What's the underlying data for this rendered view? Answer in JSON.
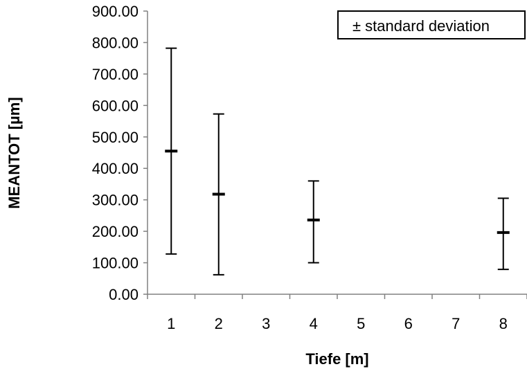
{
  "chart_data": {
    "type": "scatter",
    "title": "",
    "xlabel": "Tiefe [m]",
    "ylabel": "MEANTOT [µm]",
    "categories": [
      "1",
      "2",
      "3",
      "4",
      "5",
      "6",
      "7",
      "8"
    ],
    "ylim": [
      0,
      900
    ],
    "yticks": [
      "0.00",
      "100.00",
      "200.00",
      "300.00",
      "400.00",
      "500.00",
      "600.00",
      "700.00",
      "800.00",
      "900.00"
    ],
    "grid": false,
    "legend": {
      "label": "± standard deviation",
      "position": "top-right"
    },
    "series": [
      {
        "name": "± standard deviation",
        "points": [
          {
            "x": "1",
            "mean": 455,
            "low": 128,
            "high": 782
          },
          {
            "x": "2",
            "mean": 318,
            "low": 62,
            "high": 573
          },
          {
            "x": "4",
            "mean": 236,
            "low": 100,
            "high": 360
          },
          {
            "x": "8",
            "mean": 196,
            "low": 79,
            "high": 305
          }
        ]
      }
    ],
    "colors": {
      "line": "#000000",
      "frame": "#808080"
    }
  }
}
